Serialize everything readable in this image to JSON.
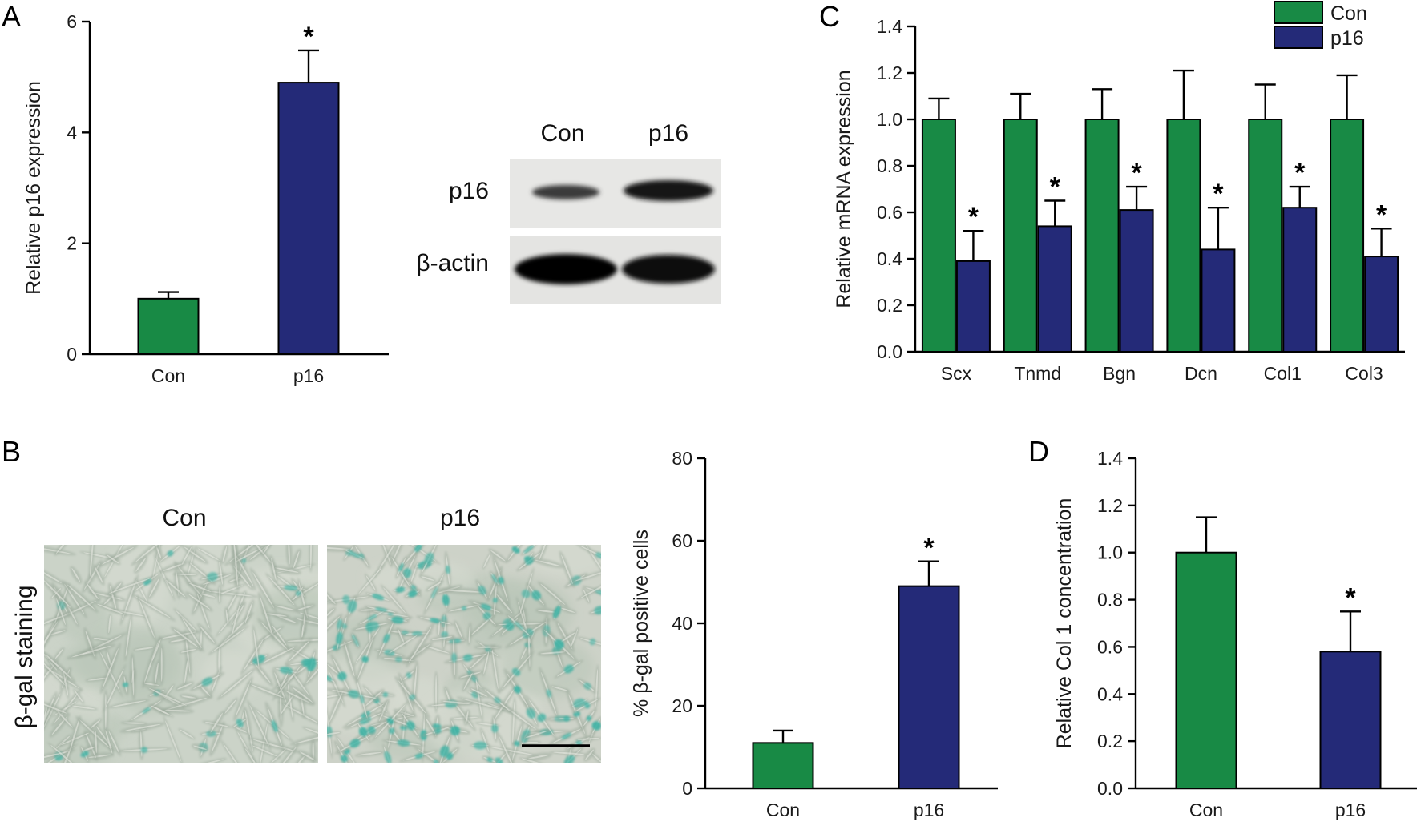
{
  "panels": {
    "A": "A",
    "B": "B",
    "C": "C",
    "D": "D"
  },
  "colors": {
    "con": "#188a45",
    "p16": "#242a78",
    "stain": "#3eb3a5",
    "photo_bg": "#c8cfc3"
  },
  "western_blot": {
    "lanes": [
      "Con",
      "p16"
    ],
    "rows": [
      "p16",
      "β-actin"
    ]
  },
  "staining": {
    "row_label": "β-gal staining",
    "images": [
      "Con",
      "p16"
    ]
  },
  "chart_data": [
    {
      "id": "A",
      "type": "bar",
      "categories": [
        "Con",
        "p16"
      ],
      "values": [
        1.0,
        4.9
      ],
      "errors": [
        0.12,
        0.58
      ],
      "significance": [
        "",
        "*"
      ],
      "ylabel": "Relative p16 expression",
      "ylim": [
        0,
        6
      ],
      "yticks": [
        "0",
        "2",
        "4",
        "6"
      ]
    },
    {
      "id": "B",
      "type": "bar",
      "categories": [
        "Con",
        "p16"
      ],
      "values": [
        11,
        49
      ],
      "errors": [
        3,
        6
      ],
      "significance": [
        "",
        "*"
      ],
      "ylabel": "% β-gal positive cells",
      "ylim": [
        0,
        80
      ],
      "yticks": [
        "0",
        "20",
        "40",
        "60",
        "80"
      ]
    },
    {
      "id": "C",
      "type": "bar",
      "categories": [
        "Scx",
        "Tnmd",
        "Bgn",
        "Dcn",
        "Col1",
        "Col3"
      ],
      "series": [
        {
          "name": "Con",
          "values": [
            1.0,
            1.0,
            1.0,
            1.0,
            1.0,
            1.0
          ],
          "errors": [
            0.09,
            0.11,
            0.13,
            0.21,
            0.15,
            0.19
          ]
        },
        {
          "name": "p16",
          "values": [
            0.39,
            0.54,
            0.61,
            0.44,
            0.62,
            0.41
          ],
          "errors": [
            0.13,
            0.11,
            0.1,
            0.18,
            0.09,
            0.12
          ]
        }
      ],
      "significance": [
        "*",
        "*",
        "*",
        "*",
        "*",
        "*"
      ],
      "ylabel": "Relative mRNA expression",
      "ylim": [
        0,
        1.4
      ],
      "yticks": [
        "0.0",
        "0.2",
        "0.4",
        "0.6",
        "0.8",
        "1.0",
        "1.2",
        "1.4"
      ],
      "legend": "top-right"
    },
    {
      "id": "D",
      "type": "bar",
      "categories": [
        "Con",
        "p16"
      ],
      "values": [
        1.0,
        0.58
      ],
      "errors": [
        0.15,
        0.17
      ],
      "significance": [
        "",
        "*"
      ],
      "ylabel": "Relative Col 1 concentration",
      "ylim": [
        0,
        1.4
      ],
      "yticks": [
        "0.0",
        "0.2",
        "0.4",
        "0.6",
        "0.8",
        "1.0",
        "1.2",
        "1.4"
      ]
    }
  ]
}
